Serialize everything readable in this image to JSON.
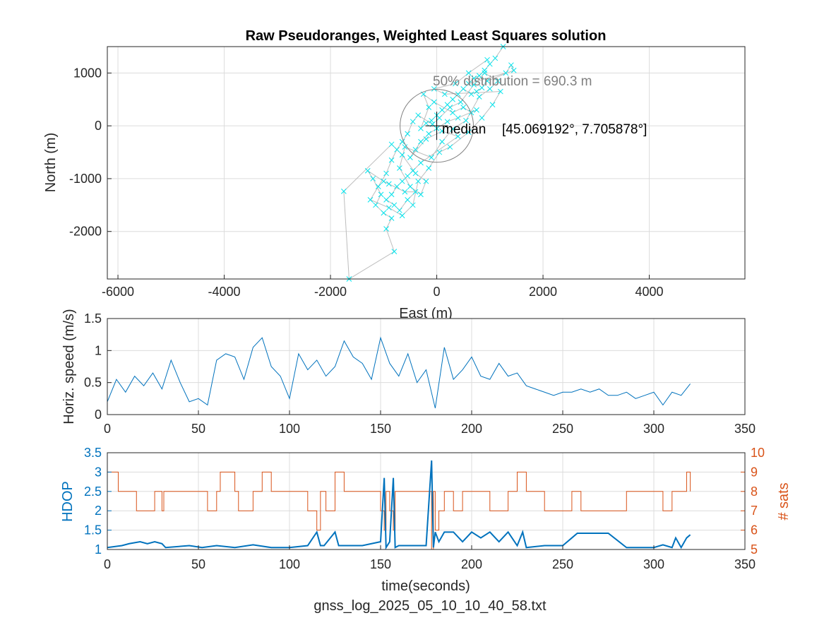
{
  "file_caption": "gnss_log_2025_05_10_10_40_58.txt",
  "colors": {
    "scatter": "#00e5ee",
    "track": "#bdbdbd",
    "speed": "#0072bd",
    "hdop": "#0072bd",
    "sats": "#d95319",
    "circle": "#808080",
    "median": "#000000"
  },
  "chart_data": [
    {
      "type": "scatter",
      "title": "Raw Pseudoranges, Weighted Least Squares solution",
      "xlabel": "East (m)",
      "ylabel": "North (m)",
      "xlim": [
        -6200,
        5800
      ],
      "ylim": [
        -2900,
        1500
      ],
      "xticks": [
        -6000,
        -4000,
        -2000,
        0,
        2000,
        4000
      ],
      "yticks": [
        -2000,
        -1000,
        0,
        1000
      ],
      "grid": true,
      "annotations": {
        "distribution_text": "50% distribution = 690.3 m",
        "radius": 690.3,
        "median_label": "median",
        "median_coords": "[45.069192°, 7.705878°]"
      },
      "points": [
        [
          1250,
          1500
        ],
        [
          1100,
          1280
        ],
        [
          1000,
          1170
        ],
        [
          900,
          1050
        ],
        [
          800,
          950
        ],
        [
          700,
          900
        ],
        [
          600,
          800
        ],
        [
          1300,
          1000
        ],
        [
          1400,
          1150
        ],
        [
          1450,
          1050
        ],
        [
          950,
          850
        ],
        [
          850,
          720
        ],
        [
          750,
          650
        ],
        [
          650,
          600
        ],
        [
          500,
          700
        ],
        [
          400,
          600
        ],
        [
          300,
          500
        ],
        [
          200,
          400
        ],
        [
          100,
          300
        ],
        [
          0,
          200
        ],
        [
          -100,
          100
        ],
        [
          -200,
          50
        ],
        [
          -300,
          -50
        ],
        [
          -150,
          350
        ],
        [
          -250,
          600
        ],
        [
          -50,
          450
        ],
        [
          300,
          250
        ],
        [
          500,
          350
        ],
        [
          650,
          250
        ],
        [
          750,
          300
        ],
        [
          400,
          150
        ],
        [
          200,
          80
        ],
        [
          0,
          -50
        ],
        [
          -150,
          -150
        ],
        [
          -300,
          -300
        ],
        [
          -400,
          -450
        ],
        [
          -500,
          -600
        ],
        [
          -200,
          -250
        ],
        [
          100,
          -100
        ],
        [
          400,
          -200
        ],
        [
          -300,
          -700
        ],
        [
          -450,
          -850
        ],
        [
          -550,
          -950
        ],
        [
          -650,
          -1050
        ],
        [
          -750,
          -1150
        ],
        [
          -850,
          -1300
        ],
        [
          -950,
          -1400
        ],
        [
          -800,
          -1500
        ],
        [
          -700,
          -1600
        ],
        [
          -550,
          -1400
        ],
        [
          -400,
          -1250
        ],
        [
          -600,
          -1250
        ],
        [
          -900,
          -1100
        ],
        [
          -1000,
          -1050
        ],
        [
          -1300,
          -850
        ],
        [
          -1200,
          -1000
        ],
        [
          -1050,
          -1300
        ],
        [
          -1150,
          -1500
        ],
        [
          -1000,
          -1650
        ],
        [
          -850,
          -1750
        ],
        [
          -950,
          -1950
        ],
        [
          -800,
          -2380
        ],
        [
          -1650,
          -2900
        ],
        [
          -1750,
          -1240
        ],
        [
          -850,
          -350
        ],
        [
          -650,
          -550
        ],
        [
          -400,
          -900
        ],
        [
          -200,
          -1050
        ],
        [
          -300,
          -1300
        ],
        [
          -500,
          -1150
        ],
        [
          -700,
          -800
        ],
        [
          -600,
          -400
        ],
        [
          -100,
          -600
        ],
        [
          100,
          -300
        ],
        [
          300,
          -60
        ],
        [
          550,
          100
        ],
        [
          800,
          550
        ],
        [
          1000,
          700
        ],
        [
          1150,
          850
        ],
        [
          900,
          1000
        ],
        [
          700,
          780
        ],
        [
          450,
          450
        ],
        [
          250,
          350
        ],
        [
          50,
          150
        ],
        [
          -80,
          30
        ],
        [
          -350,
          200
        ],
        [
          -450,
          80
        ],
        [
          -550,
          -150
        ],
        [
          -650,
          -300
        ],
        [
          -750,
          -450
        ],
        [
          -850,
          -650
        ],
        [
          -950,
          -900
        ],
        [
          -1100,
          -1150
        ],
        [
          -1250,
          -1400
        ],
        [
          -900,
          -1550
        ],
        [
          -650,
          -1700
        ],
        [
          -450,
          -1500
        ],
        [
          -350,
          -1050
        ],
        [
          -150,
          -800
        ],
        [
          50,
          -500
        ],
        [
          250,
          -400
        ],
        [
          600,
          -120
        ],
        [
          850,
          150
        ],
        [
          1050,
          400
        ],
        [
          1200,
          650
        ],
        [
          150,
          600
        ],
        [
          -50,
          700
        ],
        [
          350,
          800
        ],
        [
          600,
          1000
        ],
        [
          950,
          1250
        ]
      ]
    },
    {
      "type": "line",
      "xlabel": "",
      "ylabel": "Horiz. speed (m/s)",
      "xlim": [
        0,
        350
      ],
      "ylim": [
        0,
        1.5
      ],
      "xticks": [
        0,
        50,
        100,
        150,
        200,
        250,
        300,
        350
      ],
      "yticks": [
        0,
        0.5,
        1,
        1.5
      ],
      "grid": true,
      "x": [
        0,
        5,
        10,
        15,
        20,
        25,
        30,
        35,
        40,
        45,
        50,
        55,
        60,
        65,
        70,
        75,
        80,
        85,
        90,
        95,
        100,
        105,
        110,
        115,
        120,
        125,
        130,
        135,
        140,
        145,
        150,
        155,
        160,
        165,
        170,
        175,
        180,
        185,
        190,
        195,
        200,
        205,
        210,
        215,
        220,
        225,
        230,
        235,
        240,
        245,
        250,
        255,
        260,
        265,
        270,
        275,
        280,
        285,
        290,
        295,
        300,
        305,
        310,
        315,
        320
      ],
      "y": [
        0.2,
        0.55,
        0.35,
        0.6,
        0.45,
        0.65,
        0.4,
        0.85,
        0.5,
        0.2,
        0.25,
        0.15,
        0.85,
        0.95,
        0.9,
        0.55,
        1.05,
        1.2,
        0.75,
        0.6,
        0.25,
        0.95,
        0.7,
        0.85,
        0.6,
        0.75,
        1.15,
        0.9,
        0.8,
        0.55,
        1.2,
        0.8,
        0.6,
        0.95,
        0.5,
        0.7,
        0.1,
        1.05,
        0.55,
        0.7,
        0.9,
        0.6,
        0.55,
        0.8,
        0.6,
        0.65,
        0.45,
        0.4,
        0.35,
        0.3,
        0.35,
        0.35,
        0.4,
        0.35,
        0.4,
        0.3,
        0.3,
        0.35,
        0.25,
        0.3,
        0.35,
        0.15,
        0.35,
        0.3,
        0.48
      ]
    },
    {
      "type": "line",
      "xlabel": "time(seconds)",
      "ylabel": "HDOP",
      "ylabel_right": "# sats",
      "xlim": [
        0,
        350
      ],
      "ylim": [
        1,
        3.5
      ],
      "ylim_right": [
        5,
        10
      ],
      "xticks": [
        0,
        50,
        100,
        150,
        200,
        250,
        300,
        350
      ],
      "yticks": [
        1,
        1.5,
        2,
        2.5,
        3,
        3.5
      ],
      "yticks_right": [
        5,
        6,
        7,
        8,
        9,
        10
      ],
      "grid": true,
      "series": [
        {
          "name": "HDOP",
          "axis": "left",
          "x": [
            0,
            8,
            12,
            18,
            22,
            26,
            30,
            32,
            45,
            52,
            60,
            70,
            80,
            90,
            100,
            110,
            115,
            117,
            119,
            125,
            127,
            140,
            150,
            152,
            153,
            155,
            157,
            158,
            160,
            175,
            178,
            179,
            180,
            182,
            185,
            190,
            195,
            200,
            205,
            210,
            215,
            220,
            225,
            228,
            230,
            240,
            250,
            255,
            258,
            265,
            275,
            285,
            300,
            305,
            310,
            312,
            315,
            318,
            320
          ],
          "y": [
            1.05,
            1.1,
            1.15,
            1.2,
            1.15,
            1.2,
            1.15,
            1.05,
            1.1,
            1.05,
            1.1,
            1.05,
            1.12,
            1.05,
            1.05,
            1.1,
            1.45,
            1.1,
            1.1,
            1.45,
            1.1,
            1.1,
            1.2,
            2.85,
            1.05,
            1.2,
            2.85,
            1.05,
            1.1,
            1.1,
            3.3,
            1.05,
            1.45,
            1.2,
            1.45,
            1.45,
            1.2,
            1.45,
            1.3,
            1.45,
            1.2,
            1.45,
            1.1,
            1.45,
            1.05,
            1.1,
            1.1,
            1.3,
            1.42,
            1.42,
            1.42,
            1.05,
            1.05,
            1.12,
            1.05,
            1.3,
            1.05,
            1.3,
            1.38
          ]
        },
        {
          "name": "# sats",
          "axis": "right",
          "x": [
            0,
            5,
            6,
            15,
            16,
            25,
            26,
            30,
            31,
            50,
            55,
            60,
            62,
            70,
            72,
            80,
            85,
            90,
            100,
            110,
            115,
            117,
            120,
            125,
            130,
            140,
            150,
            152,
            153,
            155,
            157,
            158,
            160,
            175,
            178,
            179,
            180,
            182,
            185,
            190,
            195,
            200,
            210,
            220,
            225,
            230,
            240,
            250,
            255,
            258,
            260,
            285,
            300,
            305,
            310,
            315,
            318,
            320
          ],
          "y": [
            9,
            9,
            8,
            8,
            7,
            7,
            8,
            7,
            8,
            8,
            7,
            8,
            9,
            8,
            7,
            8,
            9,
            8,
            8,
            7,
            6,
            8,
            7,
            9,
            8,
            8,
            7,
            6,
            8,
            7,
            6,
            8,
            8,
            8,
            5,
            8,
            6,
            7,
            8,
            7,
            8,
            8,
            7,
            8,
            9,
            8,
            7,
            7,
            8,
            8,
            7,
            8,
            8,
            7,
            8,
            8,
            9,
            8
          ]
        }
      ]
    }
  ]
}
